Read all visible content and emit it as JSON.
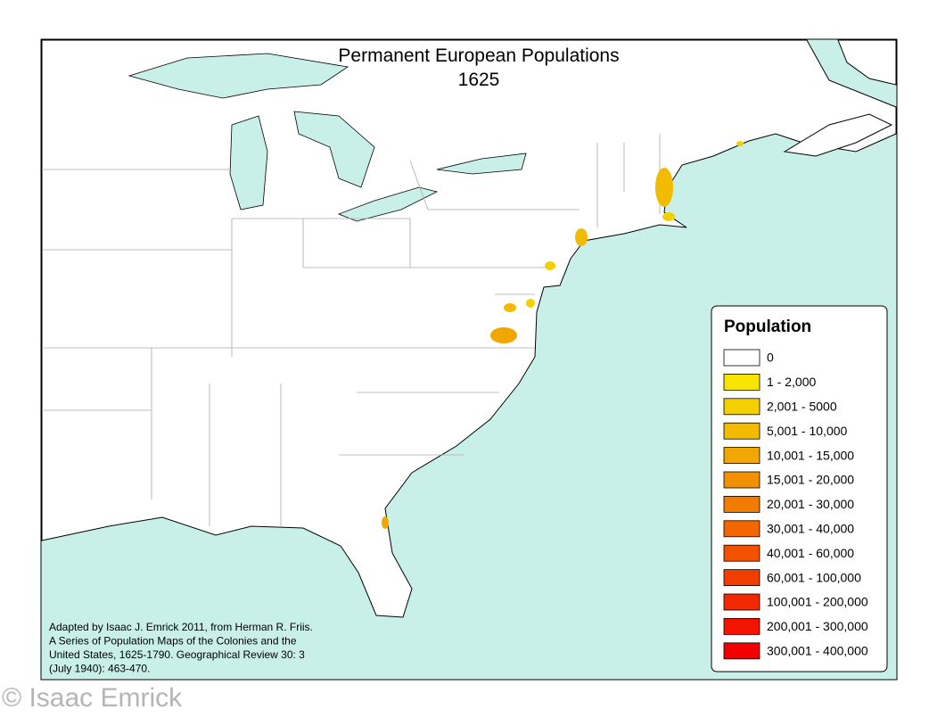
{
  "title": [
    "Permanent European Populations",
    "1625"
  ],
  "legend": {
    "title": "Population",
    "items": [
      {
        "label": "0",
        "color": "#ffffff"
      },
      {
        "label": "1 - 2,000",
        "color": "#f7e400"
      },
      {
        "label": "2,001 - 5000",
        "color": "#f5d000"
      },
      {
        "label": "5,001 - 10,000",
        "color": "#f2bb00"
      },
      {
        "label": "10,001 - 15,000",
        "color": "#f2a600"
      },
      {
        "label": "15,001 - 20,000",
        "color": "#f29100"
      },
      {
        "label": "20,001 - 30,000",
        "color": "#f27c00"
      },
      {
        "label": "30,001 - 40,000",
        "color": "#f26700"
      },
      {
        "label": "40,001 - 60,000",
        "color": "#f25200"
      },
      {
        "label": "60,001 - 100,000",
        "color": "#f23d00"
      },
      {
        "label": "100,001 - 200,000",
        "color": "#f22800"
      },
      {
        "label": "200,001 - 300,000",
        "color": "#f21400"
      },
      {
        "label": "300,001 - 400,000",
        "color": "#f20000"
      }
    ]
  },
  "source": [
    "Adapted by Isaac J. Emrick 2011, from Herman R. Friis.",
    "A Series of Population Maps of the Colonies and the",
    "United States, 1625-1790. Geographical Review 30: 3",
    "(July 1940): 463-470."
  ],
  "watermark": "© Isaac Emrick"
}
